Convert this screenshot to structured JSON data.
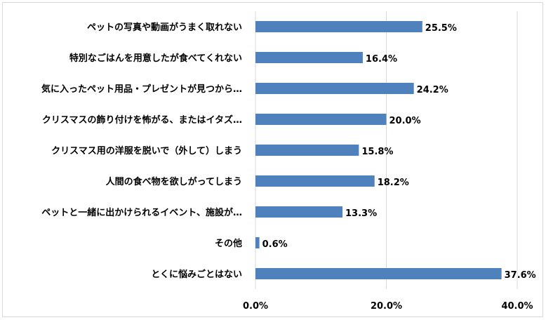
{
  "chart_data": {
    "type": "bar",
    "orientation": "horizontal",
    "title": "",
    "xlabel": "",
    "ylabel": "",
    "categories": [
      "ペットの写真や動画がうまく取れない",
      "特別なごはんを用意したが食べてくれない",
      "気に入ったペット用品・プレゼントが見つから…",
      "クリスマスの飾り付けを怖がる、またはイタズ…",
      "クリスマス用の洋服を脱いで（外して）しまう",
      "人間の食べ物を欲しがってしまう",
      "ペットと一緒に出かけられるイベント、施設が…",
      "その他",
      "とくに悩みごとはない"
    ],
    "values": [
      25.5,
      16.4,
      24.2,
      20.0,
      15.8,
      18.2,
      13.3,
      0.6,
      37.6
    ],
    "value_labels": [
      "25.5%",
      "16.4%",
      "24.2%",
      "20.0%",
      "15.8%",
      "18.2%",
      "13.3%",
      "0.6%",
      "37.6%"
    ],
    "xlim": [
      0,
      40
    ],
    "ticks": [
      0,
      20,
      40
    ],
    "tick_labels": [
      "0.0%",
      "20.0%",
      "40.0%"
    ],
    "grid": true,
    "legend": "none",
    "bar_color": "#4f81bd",
    "grid_color": "#d9d9d9"
  }
}
